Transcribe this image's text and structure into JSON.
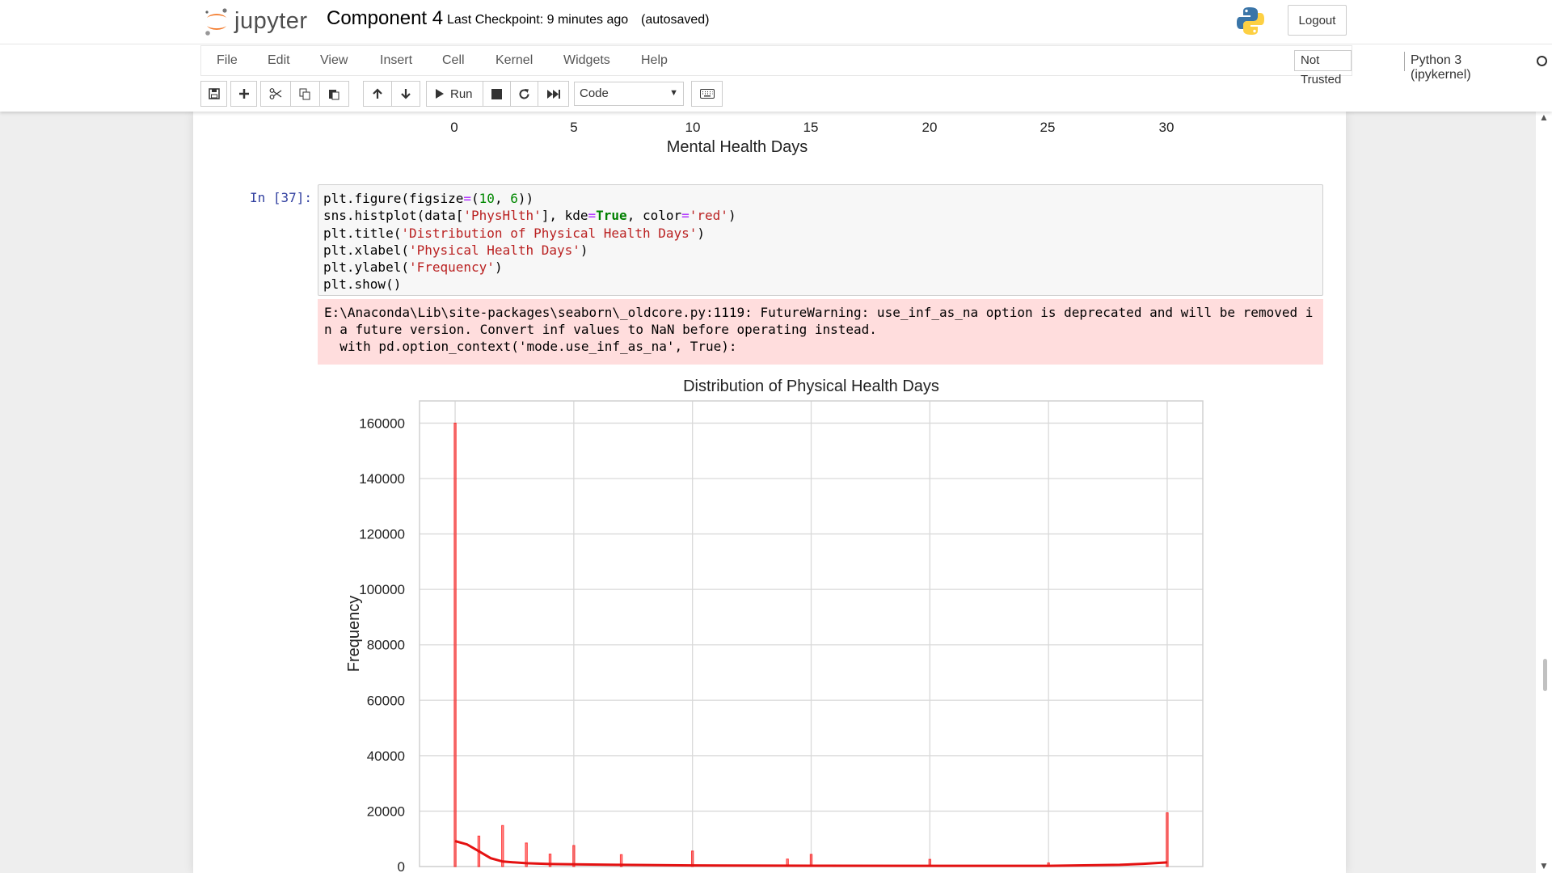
{
  "header": {
    "logo_text": "jupyter",
    "notebook_title": "Component 4",
    "checkpoint_text": "Last Checkpoint: 9 minutes ago",
    "autosave_text": "(autosaved)",
    "logout_label": "Logout"
  },
  "menu": {
    "items": [
      "File",
      "Edit",
      "View",
      "Insert",
      "Cell",
      "Kernel",
      "Widgets",
      "Help"
    ],
    "trust_status": "Not Trusted",
    "kernel_name": "Python 3 (ipykernel)"
  },
  "toolbar": {
    "run_label": "Run",
    "cell_type": "Code"
  },
  "previous_output": {
    "x_ticks": [
      "0",
      "5",
      "10",
      "15",
      "20",
      "25",
      "30"
    ],
    "xlabel": "Mental Health Days"
  },
  "cell": {
    "prompt": "In [37]:",
    "code_lines": [
      "plt.figure(figsize=(10, 6))",
      "sns.histplot(data['PhysHlth'], kde=True, color='red')",
      "plt.title('Distribution of Physical Health Days')",
      "plt.xlabel('Physical Health Days')",
      "plt.ylabel('Frequency')",
      "plt.show()"
    ],
    "stderr_lines": [
      "E:\\Anaconda\\Lib\\site-packages\\seaborn\\_oldcore.py:1119: FutureWarning: use_inf_as_na option is deprecated and will be removed i",
      "n a future version. Convert inf values to NaN before operating instead.",
      "  with pd.option_context('mode.use_inf_as_na', True):"
    ]
  },
  "chart_data": {
    "type": "bar",
    "title": "Distribution of Physical Health Days",
    "ylabel": "Frequency",
    "xlim": [
      -1.5,
      31.5
    ],
    "ylim": [
      0,
      168000
    ],
    "y_ticks": [
      0,
      20000,
      40000,
      60000,
      80000,
      100000,
      120000,
      140000,
      160000
    ],
    "x_grid": [
      0,
      5,
      10,
      15,
      20,
      25,
      30
    ],
    "grid": true,
    "color": "#ff0000",
    "x": [
      0,
      1,
      2,
      3,
      4,
      5,
      7,
      10,
      14,
      15,
      20,
      25,
      30
    ],
    "values": [
      160000,
      11000,
      14800,
      8500,
      4500,
      7600,
      4300,
      5600,
      2700,
      4400,
      2600,
      1300,
      19400
    ],
    "kde": {
      "x": [
        0,
        0.5,
        1,
        1.5,
        2,
        3,
        4,
        5,
        7,
        10,
        15,
        20,
        25,
        28,
        29,
        30
      ],
      "y": [
        9200,
        8000,
        5500,
        3000,
        1800,
        1200,
        900,
        800,
        600,
        400,
        300,
        250,
        250,
        600,
        1000,
        1500
      ]
    }
  }
}
